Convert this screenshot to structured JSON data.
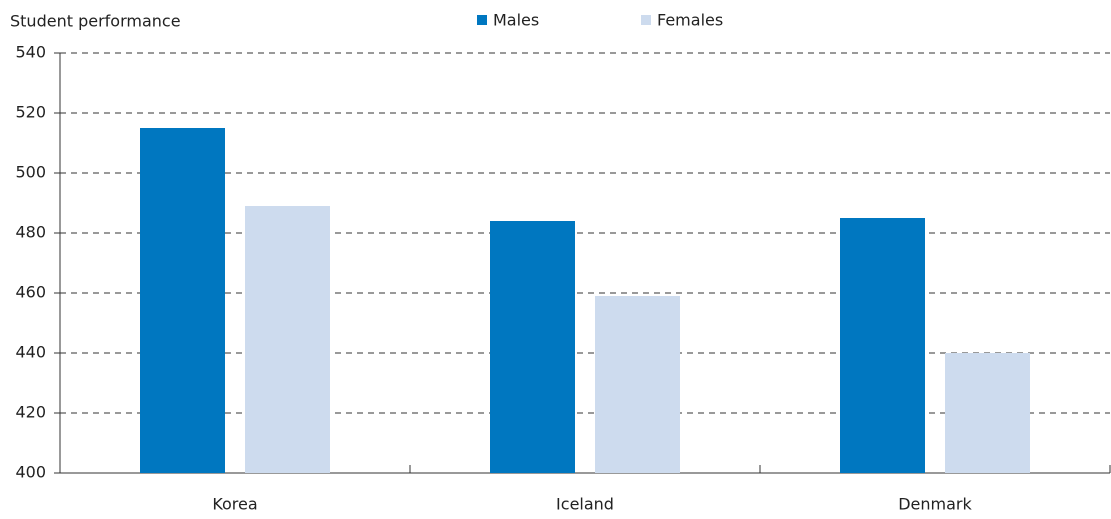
{
  "chart_data": {
    "type": "bar",
    "y_label": "Student performance",
    "categories": [
      "Korea",
      "Iceland",
      "Denmark"
    ],
    "series": [
      {
        "name": "Males",
        "color": "#0077c0",
        "values": [
          515,
          484,
          485
        ]
      },
      {
        "name": "Females",
        "color": "#cddbee",
        "values": [
          489,
          459,
          440
        ]
      }
    ],
    "ylim": [
      400,
      540
    ],
    "yticks": [
      400,
      420,
      440,
      460,
      480,
      500,
      520,
      540
    ],
    "grid": true,
    "legend": "top"
  }
}
